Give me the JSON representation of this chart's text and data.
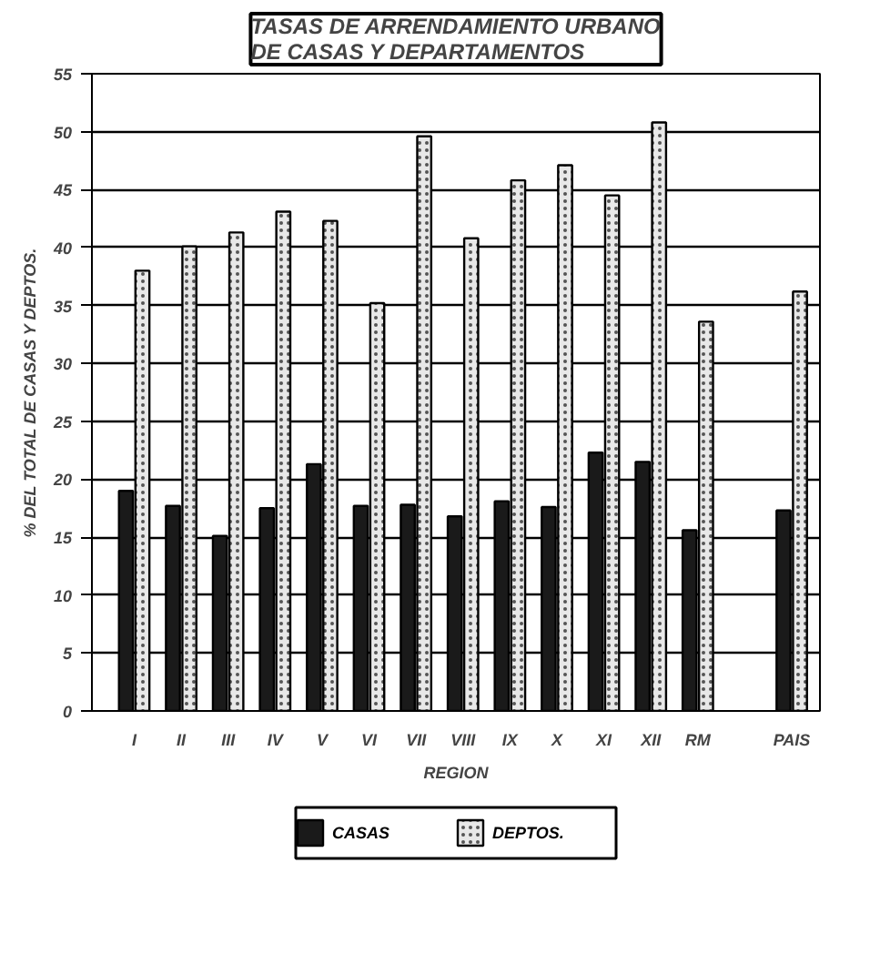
{
  "chart_data": {
    "type": "bar",
    "title": "TASAS DE ARRENDAMIENTO URBANO\nDE CASAS Y DEPARTAMENTOS",
    "xlabel": "REGION",
    "ylabel": "% DEL TOTAL DE CASAS Y DEPTOS.",
    "categories": [
      "I",
      "II",
      "III",
      "IV",
      "V",
      "VI",
      "VII",
      "VIII",
      "IX",
      "X",
      "XI",
      "XII",
      "RM",
      null,
      "PAIS"
    ],
    "series": [
      {
        "name": "CASAS",
        "color": "#1a1a1a",
        "values": [
          19.0,
          17.7,
          15.1,
          17.5,
          21.3,
          17.7,
          17.8,
          16.8,
          18.1,
          17.6,
          22.3,
          21.5,
          15.6,
          null,
          17.3
        ]
      },
      {
        "name": "DEPTOS.",
        "color": "#e8e8e8",
        "values": [
          38.0,
          40.1,
          41.3,
          43.1,
          42.3,
          35.2,
          49.6,
          40.8,
          45.8,
          47.1,
          44.5,
          50.8,
          33.6,
          null,
          36.2
        ]
      }
    ],
    "ylim": [
      0,
      55
    ],
    "yticks": [
      0,
      5,
      10,
      15,
      20,
      25,
      30,
      35,
      40,
      45,
      50,
      55
    ],
    "grid": "y",
    "legend": "bottom"
  }
}
